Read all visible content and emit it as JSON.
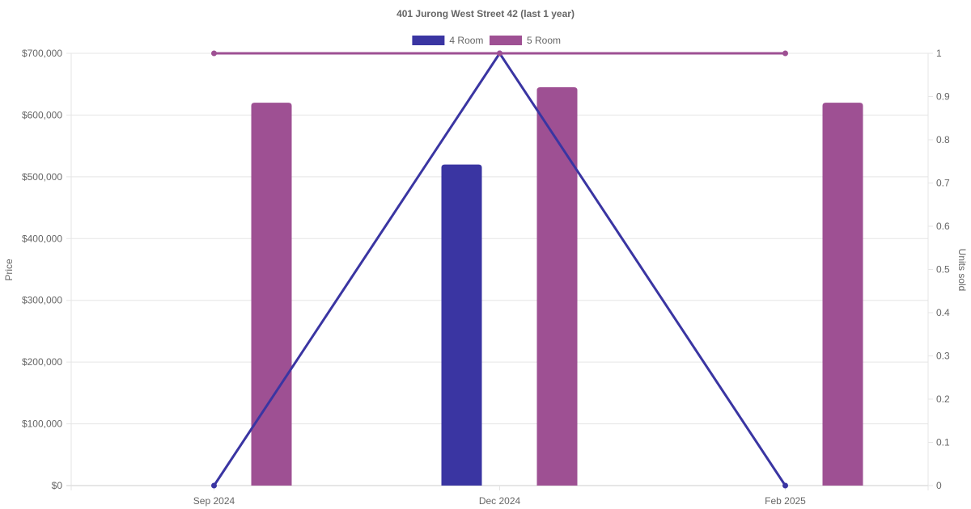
{
  "chart_data": {
    "type": "bar",
    "title": "401 Jurong West Street 42 (last 1 year)",
    "categories": [
      "Sep 2024",
      "Dec 2024",
      "Feb 2025"
    ],
    "legend": {
      "position": "top-center",
      "items": [
        {
          "label": "4 Room",
          "color": "#3A35A2"
        },
        {
          "label": "5 Room",
          "color": "#9E5093"
        }
      ]
    },
    "y_left": {
      "label": "Price",
      "ticks": [
        "$0",
        "$100,000",
        "$200,000",
        "$300,000",
        "$400,000",
        "$500,000",
        "$600,000",
        "$700,000"
      ],
      "range": [
        0,
        700000
      ]
    },
    "y_right": {
      "label": "Units sold",
      "ticks": [
        "0",
        "0.1",
        "0.2",
        "0.3",
        "0.4",
        "0.5",
        "0.6",
        "0.7",
        "0.8",
        "0.9",
        "1"
      ],
      "range": [
        0,
        1
      ]
    },
    "grid": true,
    "bar_series": [
      {
        "name": "4 Room",
        "color": "#3A35A2",
        "values": [
          null,
          520000,
          null
        ]
      },
      {
        "name": "5 Room",
        "color": "#9E5093",
        "values": [
          620000,
          645000,
          620000
        ]
      }
    ],
    "line_series": [
      {
        "name": "4 Room",
        "color": "#3A35A2",
        "values": [
          0,
          1,
          0
        ]
      },
      {
        "name": "5 Room",
        "color": "#9E5093",
        "values": [
          1,
          1,
          1
        ]
      }
    ]
  }
}
